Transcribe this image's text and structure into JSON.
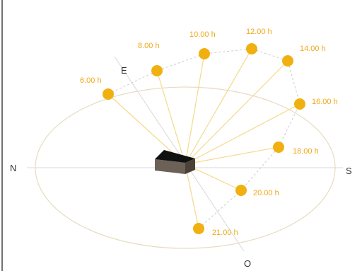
{
  "colors": {
    "sun": "#f0b010",
    "sun_label": "#f0a818",
    "ray": "#f5d98a",
    "ellipse": "#e6dcc0",
    "axis": "#d8d8d8",
    "arc": "#cccccc",
    "building_top": "#111111",
    "building_front": "#6b6157",
    "building_side": "#4a423a",
    "frame": "#444444"
  },
  "directions": {
    "north": "N",
    "south": "S",
    "east": "E",
    "west": "O"
  },
  "suns": [
    {
      "label": "6.00 h"
    },
    {
      "label": "8.00 h"
    },
    {
      "label": "10.00 h"
    },
    {
      "label": "12.00 h"
    },
    {
      "label": "14.00 h"
    },
    {
      "label": "16.00 h"
    },
    {
      "label": "18.00 h"
    },
    {
      "label": "20.00 h"
    },
    {
      "label": "21.00 h"
    }
  ]
}
